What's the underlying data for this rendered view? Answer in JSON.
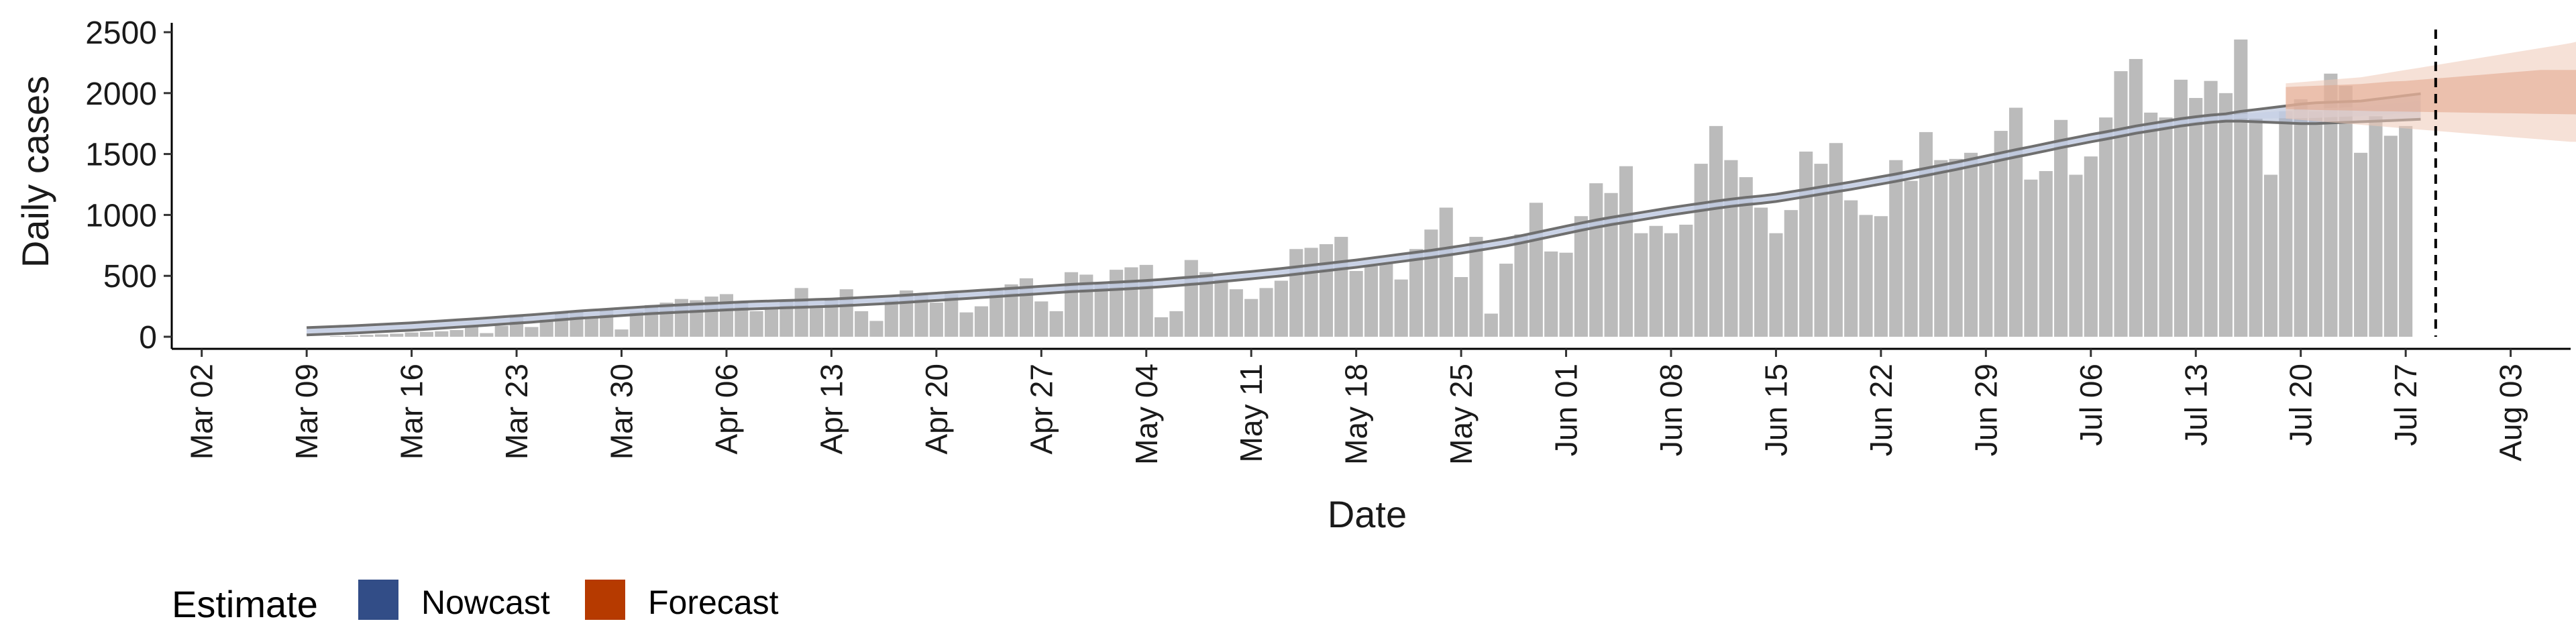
{
  "chart_data": {
    "type": "bar",
    "xlabel": "Date",
    "ylabel": "Daily cases",
    "ylim": [
      0,
      2500
    ],
    "yticks": [
      0,
      500,
      1000,
      1500,
      2000,
      2500
    ],
    "x_range": [
      "2020-02-29",
      "2020-08-07"
    ],
    "x_ticks": [
      "2020-03-02",
      "2020-03-09",
      "2020-03-16",
      "2020-03-23",
      "2020-03-30",
      "2020-04-06",
      "2020-04-13",
      "2020-04-20",
      "2020-04-27",
      "2020-05-04",
      "2020-05-11",
      "2020-05-18",
      "2020-05-25",
      "2020-06-01",
      "2020-06-08",
      "2020-06-15",
      "2020-06-22",
      "2020-06-29",
      "2020-07-06",
      "2020-07-13",
      "2020-07-20",
      "2020-07-27",
      "2020-08-03"
    ],
    "x_tick_labels": [
      "Mar 02",
      "Mar 09",
      "Mar 16",
      "Mar 23",
      "Mar 30",
      "Apr 06",
      "Apr 13",
      "Apr 20",
      "Apr 27",
      "May 04",
      "May 11",
      "May 18",
      "May 25",
      "Jun 01",
      "Jun 08",
      "Jun 15",
      "Jun 22",
      "Jun 29",
      "Jul 06",
      "Jul 13",
      "Jul 20",
      "Jul 27",
      "Aug 03"
    ],
    "grid": false,
    "reference_line_date": "2020-07-29",
    "bar_start_date": "2020-03-10",
    "daily_cases": [
      0,
      5,
      10,
      15,
      20,
      25,
      35,
      40,
      45,
      55,
      80,
      30,
      90,
      180,
      80,
      140,
      200,
      210,
      160,
      220,
      60,
      210,
      260,
      280,
      310,
      300,
      330,
      350,
      280,
      210,
      230,
      300,
      400,
      240,
      300,
      390,
      210,
      130,
      300,
      380,
      340,
      280,
      350,
      200,
      250,
      380,
      430,
      480,
      290,
      210,
      530,
      510,
      430,
      550,
      570,
      590,
      160,
      210,
      630,
      530,
      470,
      390,
      310,
      400,
      460,
      720,
      730,
      760,
      820,
      540,
      580,
      600,
      470,
      720,
      880,
      1060,
      490,
      820,
      190,
      600,
      840,
      1100,
      700,
      690,
      990,
      1260,
      1180,
      1400,
      850,
      910,
      850,
      920,
      1420,
      1730,
      1450,
      1310,
      1060,
      850,
      1040,
      1520,
      1420,
      1590,
      1120,
      1000,
      990,
      1450,
      1280,
      1680,
      1450,
      1460,
      1510,
      1420,
      1690,
      1880,
      1290,
      1360,
      1780,
      1330,
      1480,
      1800,
      2180,
      2280,
      1840,
      1800,
      2110,
      1960,
      2100,
      2000,
      2440,
      1790,
      1330,
      1850,
      1950,
      1850,
      2160,
      2060,
      1510,
      1810,
      1650,
      1730
    ],
    "nowcast": {
      "name": "Nowcast",
      "start_date": "2020-03-09",
      "median": [
        45,
        50,
        55,
        60,
        66,
        72,
        78,
        84,
        92,
        100,
        108,
        116,
        124,
        133,
        142,
        150,
        160,
        170,
        180,
        188,
        196,
        204,
        212,
        220,
        226,
        232,
        238,
        244,
        250,
        256,
        260,
        264,
        268,
        272,
        276,
        280,
        286,
        292,
        298,
        305,
        312,
        320,
        328,
        336,
        344,
        352,
        360,
        368,
        376,
        384,
        392,
        400,
        406,
        412,
        418,
        425,
        432,
        440,
        450,
        460,
        470,
        482,
        494,
        506,
        518,
        530,
        544,
        558,
        572,
        586,
        600,
        616,
        632,
        648,
        664,
        680,
        698,
        716,
        736,
        756,
        776,
        800,
        826,
        852,
        878,
        904,
        928,
        950,
        970,
        990,
        1010,
        1030,
        1048,
        1066,
        1084,
        1100,
        1114,
        1126,
        1140,
        1160,
        1180,
        1200,
        1220,
        1240,
        1262,
        1284,
        1306,
        1330,
        1354,
        1378,
        1402,
        1428,
        1454,
        1480,
        1506,
        1530,
        1556,
        1582,
        1606,
        1630,
        1652,
        1676,
        1700,
        1720,
        1740,
        1760,
        1776,
        1790,
        1800,
        1810,
        1815,
        1820,
        1825,
        1830,
        1835,
        1840,
        1845,
        1850,
        1860,
        1870,
        1880,
        1890
      ],
      "lower": [
        15,
        20,
        25,
        30,
        36,
        42,
        48,
        54,
        62,
        70,
        78,
        86,
        94,
        103,
        112,
        120,
        130,
        140,
        150,
        158,
        166,
        174,
        182,
        190,
        196,
        202,
        208,
        214,
        220,
        226,
        230,
        234,
        238,
        242,
        246,
        250,
        256,
        262,
        268,
        275,
        282,
        290,
        298,
        306,
        314,
        322,
        330,
        338,
        346,
        354,
        362,
        370,
        376,
        382,
        388,
        395,
        402,
        410,
        420,
        430,
        440,
        452,
        464,
        476,
        488,
        500,
        514,
        528,
        542,
        556,
        570,
        586,
        602,
        618,
        634,
        650,
        668,
        686,
        706,
        726,
        746,
        770,
        796,
        822,
        848,
        874,
        898,
        920,
        940,
        960,
        980,
        1000,
        1018,
        1036,
        1054,
        1070,
        1084,
        1096,
        1110,
        1130,
        1150,
        1170,
        1190,
        1210,
        1232,
        1254,
        1276,
        1300,
        1324,
        1348,
        1372,
        1398,
        1424,
        1450,
        1476,
        1500,
        1526,
        1552,
        1576,
        1600,
        1622,
        1646,
        1670,
        1690,
        1710,
        1730,
        1746,
        1760,
        1770,
        1770,
        1765,
        1760,
        1755,
        1750,
        1750,
        1755,
        1760,
        1765,
        1770,
        1775,
        1780,
        1785
      ],
      "upper": [
        75,
        80,
        85,
        90,
        96,
        102,
        108,
        114,
        122,
        130,
        138,
        146,
        154,
        163,
        172,
        180,
        190,
        200,
        210,
        218,
        226,
        234,
        242,
        250,
        256,
        262,
        268,
        274,
        280,
        286,
        290,
        294,
        298,
        302,
        306,
        310,
        316,
        322,
        328,
        335,
        342,
        350,
        358,
        366,
        374,
        382,
        390,
        398,
        406,
        414,
        422,
        430,
        436,
        442,
        448,
        455,
        462,
        470,
        480,
        490,
        500,
        512,
        524,
        536,
        548,
        560,
        574,
        588,
        602,
        616,
        630,
        646,
        662,
        678,
        694,
        710,
        728,
        746,
        766,
        786,
        806,
        830,
        856,
        882,
        908,
        934,
        958,
        980,
        1000,
        1020,
        1040,
        1060,
        1078,
        1096,
        1114,
        1130,
        1144,
        1156,
        1170,
        1190,
        1210,
        1230,
        1250,
        1270,
        1292,
        1314,
        1336,
        1360,
        1384,
        1408,
        1432,
        1458,
        1484,
        1510,
        1536,
        1560,
        1586,
        1612,
        1636,
        1660,
        1682,
        1706,
        1730,
        1750,
        1770,
        1790,
        1806,
        1820,
        1830,
        1850,
        1865,
        1880,
        1895,
        1910,
        1920,
        1925,
        1930,
        1935,
        1950,
        1965,
        1980,
        1995
      ]
    },
    "forecast": {
      "name": "Forecast",
      "start_date": "2020-07-19",
      "median": [
        1990,
        1990,
        1995,
        2000,
        2005,
        2010,
        2012,
        2015,
        2020,
        2025,
        2030,
        2035,
        2040,
        2045,
        2050,
        2050,
        2052,
        2055,
        2055,
        2058,
        2060
      ],
      "lower50": [
        1870,
        1865,
        1862,
        1860,
        1858,
        1855,
        1852,
        1850,
        1848,
        1846,
        1844,
        1842,
        1840,
        1838,
        1836,
        1834,
        1832,
        1830,
        1828,
        1826,
        1825
      ],
      "upper50": [
        2050,
        2055,
        2060,
        2065,
        2070,
        2075,
        2085,
        2095,
        2100,
        2110,
        2120,
        2130,
        2140,
        2150,
        2160,
        2170,
        2180,
        2190,
        2190,
        2190,
        2190
      ],
      "lower90": [
        1790,
        1780,
        1770,
        1760,
        1750,
        1740,
        1730,
        1720,
        1710,
        1700,
        1690,
        1680,
        1670,
        1660,
        1650,
        1640,
        1630,
        1620,
        1610,
        1600,
        1600
      ],
      "upper90": [
        2080,
        2090,
        2100,
        2110,
        2120,
        2130,
        2150,
        2170,
        2190,
        2210,
        2230,
        2250,
        2270,
        2290,
        2310,
        2330,
        2350,
        2370,
        2390,
        2410,
        2440
      ]
    },
    "legend": {
      "title": "Estimate",
      "position": "bottom-left",
      "items": [
        {
          "label": "Nowcast",
          "color": "#324d87"
        },
        {
          "label": "Forecast",
          "color": "#b63a00"
        }
      ]
    },
    "colors": {
      "bars": "#bbbbbb",
      "nowcast_band": "#aab7d4",
      "nowcast_inner": "#c6d0e6",
      "forecast_band": "#efc9b6",
      "forecast_inner": "#e2a68a",
      "interval_line": "#6f6f6f",
      "reference_line": "#000000"
    }
  }
}
